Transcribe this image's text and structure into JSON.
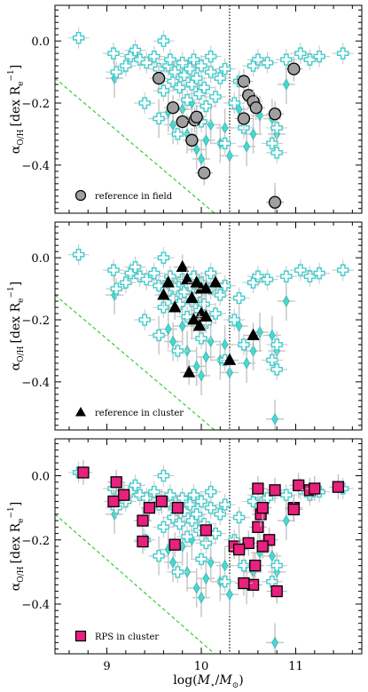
{
  "chart_data": [
    {
      "type": "scatter",
      "panel": "top",
      "xlim": [
        8.45,
        11.7
      ],
      "ylim": [
        -0.555,
        0.115
      ],
      "xticks": [
        9,
        10,
        11
      ],
      "yticks": [
        0.0,
        -0.2,
        -0.4
      ],
      "ytick_labels": [
        "0.0",
        "−0.2",
        "−0.4"
      ],
      "ylabel_main": "α",
      "ylabel_sub": "O/H",
      "ylabel_unit": "[dex R",
      "ylabel_unit_sub": "e",
      "ylabel_unit_sup": "−1",
      "ylabel_unit_end": "]",
      "vline_x": 10.3,
      "dashed_line": {
        "x": [
          8.45,
          10.14
        ],
        "y": [
          -0.12,
          -0.555
        ]
      },
      "legend": {
        "label": "reference in field",
        "marker": "circle",
        "color": "#a0a0a0",
        "position": "lower-left"
      },
      "highlight_series": {
        "name": "reference in field",
        "marker": "circle",
        "color": "#a0a0a0",
        "x": [
          9.55,
          9.7,
          9.8,
          9.9,
          9.93,
          9.95,
          10.03,
          10.45,
          10.5,
          10.55,
          10.58,
          10.45,
          10.78,
          10.98,
          10.78
        ],
        "y": [
          -0.12,
          -0.215,
          -0.26,
          -0.32,
          -0.255,
          -0.245,
          -0.425,
          -0.13,
          -0.175,
          -0.195,
          -0.215,
          -0.25,
          -0.235,
          -0.09,
          -0.52
        ]
      }
    },
    {
      "type": "scatter",
      "panel": "middle",
      "xlim": [
        8.45,
        11.7
      ],
      "ylim": [
        -0.555,
        0.115
      ],
      "xticks": [
        9,
        10,
        11
      ],
      "yticks": [
        0.0,
        -0.2,
        -0.4
      ],
      "ytick_labels": [
        "0.0",
        "−0.2",
        "−0.4"
      ],
      "ylabel_main": "α",
      "ylabel_sub": "O/H",
      "ylabel_unit": "[dex R",
      "ylabel_unit_sub": "e",
      "ylabel_unit_sup": "−1",
      "ylabel_unit_end": "]",
      "vline_x": 10.3,
      "dashed_line": {
        "x": [
          8.45,
          10.14
        ],
        "y": [
          -0.12,
          -0.555
        ]
      },
      "legend": {
        "label": "reference in cluster",
        "marker": "triangle",
        "color": "#000000",
        "position": "lower-left"
      },
      "highlight_series": {
        "name": "reference in cluster",
        "marker": "triangle",
        "color": "#000000",
        "x": [
          9.8,
          9.6,
          9.65,
          9.72,
          9.85,
          9.9,
          9.95,
          10.0,
          10.05,
          10.0,
          9.92,
          9.98,
          10.05,
          10.15,
          9.87,
          10.3,
          10.55
        ],
        "y": [
          -0.03,
          -0.12,
          -0.08,
          -0.16,
          -0.07,
          -0.13,
          -0.08,
          -0.1,
          -0.1,
          -0.18,
          -0.2,
          -0.22,
          -0.19,
          -0.08,
          -0.37,
          -0.33,
          -0.25
        ]
      }
    },
    {
      "type": "scatter",
      "panel": "bottom",
      "xlim": [
        8.45,
        11.7
      ],
      "ylim": [
        -0.555,
        0.115
      ],
      "xticks": [
        9,
        10,
        11
      ],
      "xtick_labels": [
        "9",
        "10",
        "11"
      ],
      "yticks": [
        0.0,
        -0.2,
        -0.4
      ],
      "ytick_labels": [
        "0.0",
        "−0.2",
        "−0.4"
      ],
      "xlabel_text": "log(",
      "xlabel_M": "M",
      "xlabel_star": "⋆",
      "xlabel_slash": "/",
      "xlabel_sun": "⊙",
      "xlabel_close": ")",
      "ylabel_main": "α",
      "ylabel_sub": "O/H",
      "ylabel_unit": "[dex R",
      "ylabel_unit_sub": "e",
      "ylabel_unit_sup": "−1",
      "ylabel_unit_end": "]",
      "vline_x": 10.3,
      "dashed_line": {
        "x": [
          8.45,
          10.14
        ],
        "y": [
          -0.12,
          -0.555
        ]
      },
      "legend": {
        "label": "RPS in cluster",
        "marker": "square",
        "color": "#e8207e",
        "position": "lower-left"
      },
      "highlight_series": {
        "name": "RPS in cluster",
        "marker": "square",
        "color": "#e8207e",
        "x": [
          8.75,
          9.07,
          9.1,
          9.18,
          9.38,
          9.38,
          9.45,
          9.58,
          9.72,
          9.75,
          10.05,
          10.35,
          10.5,
          10.55,
          10.6,
          10.63,
          10.65,
          10.72,
          10.6,
          10.65,
          10.4,
          10.45,
          10.57,
          10.78,
          10.8,
          10.98,
          11.03,
          11.15,
          11.2,
          11.45,
          10.98
        ],
        "y": [
          0.01,
          -0.08,
          -0.02,
          -0.06,
          -0.14,
          -0.205,
          -0.1,
          -0.08,
          -0.215,
          -0.1,
          -0.17,
          -0.22,
          -0.21,
          -0.34,
          -0.16,
          -0.12,
          -0.1,
          -0.2,
          -0.04,
          -0.22,
          -0.23,
          -0.335,
          -0.28,
          -0.045,
          -0.36,
          -0.1,
          -0.03,
          -0.045,
          -0.04,
          -0.035,
          -0.105
        ]
      }
    }
  ],
  "background_series": {
    "name": "",
    "open_cross": {
      "color": "#40cccc",
      "x": [
        8.7,
        9.07,
        9.1,
        9.2,
        9.25,
        9.3,
        9.35,
        9.42,
        9.5,
        9.55,
        9.6,
        9.65,
        9.67,
        9.7,
        9.72,
        9.77,
        9.8,
        9.82,
        9.85,
        9.88,
        9.9,
        9.92,
        9.95,
        9.98,
        10.0,
        10.03,
        10.05,
        10.1,
        10.15,
        10.2,
        10.25,
        10.35,
        10.4,
        10.45,
        10.55,
        10.6,
        10.7,
        10.75,
        10.8,
        10.9,
        11.05,
        11.15,
        11.25,
        11.5,
        9.4,
        9.55,
        9.75,
        10.0,
        10.25,
        10.8,
        9.6,
        10.1
      ],
      "y": [
        0.01,
        -0.04,
        -0.1,
        -0.08,
        -0.05,
        -0.03,
        -0.06,
        -0.07,
        -0.05,
        -0.09,
        -0.16,
        -0.08,
        -0.06,
        -0.13,
        -0.1,
        -0.15,
        -0.07,
        -0.11,
        -0.19,
        -0.09,
        -0.14,
        -0.06,
        -0.12,
        -0.17,
        -0.08,
        -0.15,
        -0.21,
        -0.1,
        -0.18,
        -0.12,
        -0.09,
        -0.2,
        -0.13,
        -0.28,
        -0.08,
        -0.06,
        -0.07,
        -0.33,
        -0.36,
        -0.06,
        -0.04,
        -0.06,
        -0.05,
        -0.04,
        -0.2,
        -0.25,
        -0.3,
        -0.26,
        -0.33,
        -0.28,
        0.0,
        -0.05
      ]
    },
    "filled_diamond": {
      "color": "#48d8d0",
      "x": [
        9.08,
        9.55,
        9.7,
        9.85,
        9.95,
        10.0,
        10.05,
        10.2,
        10.25,
        10.4,
        10.55,
        10.62,
        10.8,
        10.9,
        9.65,
        9.8,
        10.1,
        10.48,
        10.75,
        10.78,
        9.9,
        10.3
      ],
      "y": [
        -0.12,
        -0.25,
        -0.27,
        -0.3,
        -0.35,
        -0.38,
        -0.32,
        -0.33,
        -0.28,
        -0.22,
        -0.3,
        -0.24,
        -0.3,
        -0.14,
        -0.23,
        -0.22,
        -0.27,
        -0.34,
        -0.25,
        -0.52,
        -0.2,
        -0.37
      ]
    }
  }
}
